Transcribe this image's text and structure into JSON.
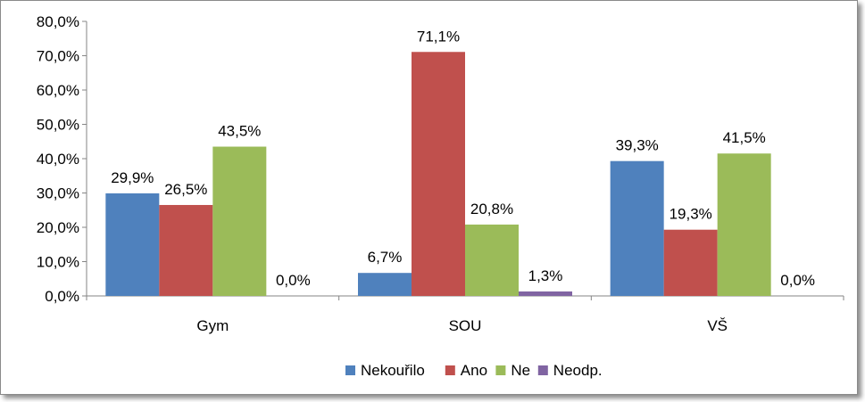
{
  "chart_data": {
    "type": "bar",
    "title": "",
    "xlabel": "",
    "ylabel": "",
    "categories": [
      "Gym",
      "SOU",
      "VŠ"
    ],
    "series": [
      {
        "name": "Nekouřilo",
        "color": "#4F81BD",
        "values": [
          29.9,
          6.7,
          39.3
        ],
        "labels": [
          "29,9%",
          "6,7%",
          "39,3%"
        ]
      },
      {
        "name": "Ano",
        "color": "#C0504D",
        "values": [
          26.5,
          71.1,
          19.3
        ],
        "labels": [
          "26,5%",
          "71,1%",
          "19,3%"
        ]
      },
      {
        "name": "Ne",
        "color": "#9BBB59",
        "values": [
          43.5,
          20.8,
          41.5
        ],
        "labels": [
          "43,5%",
          "20,8%",
          "41,5%"
        ]
      },
      {
        "name": "Neodp.",
        "color": "#8064A2",
        "values": [
          0.0,
          1.3,
          0.0
        ],
        "labels": [
          "0,0%",
          "1,3%",
          "0,0%"
        ]
      }
    ],
    "ylim": [
      0,
      80
    ],
    "yticks": [
      0,
      10,
      20,
      30,
      40,
      50,
      60,
      70,
      80
    ],
    "ytick_labels": [
      "0,0%",
      "10,0%",
      "20,0%",
      "30,0%",
      "40,0%",
      "50,0%",
      "60,0%",
      "70,0%",
      "80,0%"
    ],
    "grid": false,
    "legend_position": "bottom"
  }
}
